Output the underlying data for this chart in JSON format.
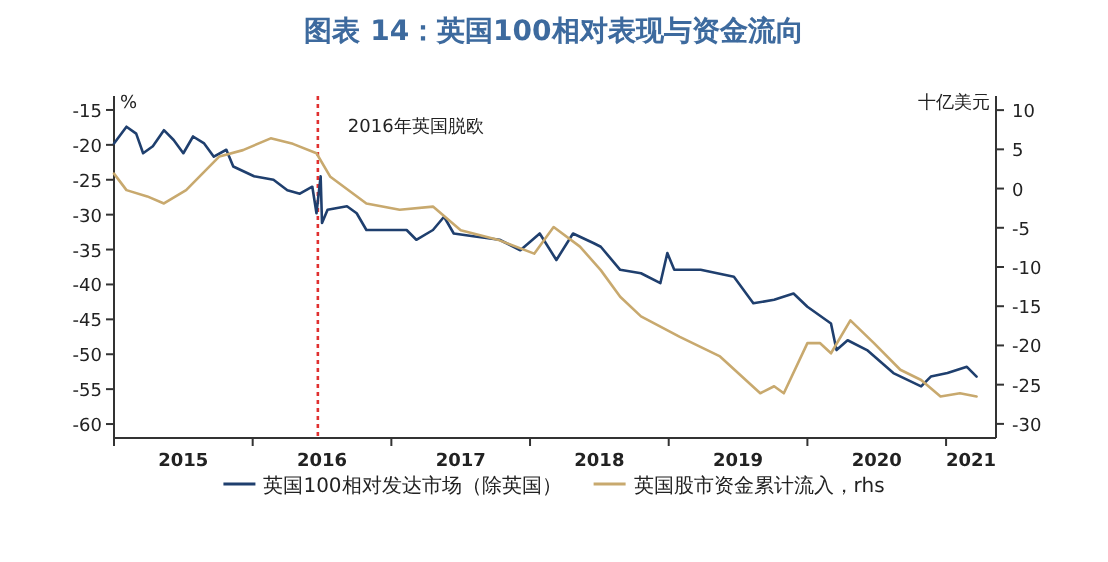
{
  "chart_data": {
    "type": "line",
    "title": "图表 14：英国100相对表现与资金流向",
    "ylabel": "%",
    "y2label": "十亿美元",
    "xlim": [
      2015.0,
      2021.36
    ],
    "ylim": [
      -62,
      -13
    ],
    "y2lim": [
      -31.8,
      11.8
    ],
    "xticks": [
      {
        "value": 2015,
        "label": null
      },
      {
        "value": 2015.5,
        "label": "2015"
      },
      {
        "value": 2016,
        "label": null
      },
      {
        "value": 2016.5,
        "label": "2016"
      },
      {
        "value": 2017,
        "label": null
      },
      {
        "value": 2017.5,
        "label": "2017"
      },
      {
        "value": 2018,
        "label": null
      },
      {
        "value": 2018.5,
        "label": "2018"
      },
      {
        "value": 2019,
        "label": null
      },
      {
        "value": 2019.5,
        "label": "2019"
      },
      {
        "value": 2020,
        "label": null
      },
      {
        "value": 2020.5,
        "label": "2020"
      },
      {
        "value": 2021,
        "label": null
      },
      {
        "value": 2021.18,
        "label": "2021"
      }
    ],
    "yticks": [
      -15,
      -20,
      -25,
      -30,
      -35,
      -40,
      -45,
      -50,
      -55,
      -60
    ],
    "y2ticks": [
      10,
      5,
      0,
      -5,
      -10,
      -15,
      -20,
      -25,
      -30
    ],
    "ref_lines": [
      {
        "axis": "x",
        "value": 2016.47,
        "label": "2016年英国脱欧",
        "color": "#e03030",
        "line_style": "dotted"
      }
    ],
    "legend": "bottom",
    "series": [
      {
        "name": "英国100相对发达市场（除英国）",
        "color": "#1f3f6e",
        "x": [
          2015.0,
          2015.09,
          2015.16,
          2015.21,
          2015.28,
          2015.36,
          2015.43,
          2015.5,
          2015.57,
          2015.65,
          2015.72,
          2015.81,
          2015.86,
          2016.01,
          2016.15,
          2016.25,
          2016.34,
          2016.43,
          2016.46,
          2016.49,
          2016.5,
          2016.54,
          2016.68,
          2016.75,
          2016.82,
          2016.97,
          2017.11,
          2017.18,
          2017.3,
          2017.38,
          2017.45,
          2017.59,
          2017.78,
          2017.93,
          2018.07,
          2018.19,
          2018.31,
          2018.46,
          2018.51,
          2018.65,
          2018.8,
          2018.94,
          2018.99,
          2019.04,
          2019.23,
          2019.47,
          2019.61,
          2019.76,
          2019.9,
          2020.0,
          2020.17,
          2020.21,
          2020.29,
          2020.43,
          2020.62,
          2020.82,
          2020.89,
          2021.01,
          2021.15,
          2021.22
        ],
        "values": [
          -19.8,
          -17.4,
          -18.4,
          -21.2,
          -20.2,
          -17.9,
          -19.3,
          -21.2,
          -18.8,
          -19.8,
          -21.7,
          -20.7,
          -23.1,
          -24.5,
          -25.0,
          -26.5,
          -27.0,
          -26.0,
          -29.8,
          -24.5,
          -31.2,
          -29.3,
          -28.8,
          -29.8,
          -32.2,
          -32.2,
          -32.2,
          -33.6,
          -32.2,
          -30.3,
          -32.7,
          -33.1,
          -33.6,
          -35.1,
          -32.7,
          -36.5,
          -32.7,
          -34.1,
          -34.6,
          -37.9,
          -38.4,
          -39.8,
          -35.5,
          -37.9,
          -37.9,
          -38.9,
          -42.7,
          -42.2,
          -41.3,
          -43.2,
          -45.6,
          -49.4,
          -48.0,
          -49.4,
          -52.7,
          -54.6,
          -53.2,
          -52.7,
          -51.8,
          -53.2
        ]
      },
      {
        "name": "英国股市资金累计流入，rhs",
        "color": "#c8a96e",
        "axis": "y2",
        "x": [
          2015.0,
          2015.09,
          2015.24,
          2015.36,
          2015.52,
          2015.76,
          2015.93,
          2016.13,
          2016.29,
          2016.46,
          2016.56,
          2016.82,
          2017.06,
          2017.3,
          2017.5,
          2017.78,
          2018.03,
          2018.17,
          2018.36,
          2018.51,
          2018.65,
          2018.8,
          2019.08,
          2019.37,
          2019.66,
          2019.76,
          2019.83,
          2020.0,
          2020.09,
          2020.17,
          2020.31,
          2020.48,
          2020.67,
          2020.82,
          2020.96,
          2021.1,
          2021.22
        ],
        "values": [
          1.9,
          -0.2,
          -1.0,
          -1.9,
          -0.2,
          4.1,
          4.9,
          6.4,
          5.7,
          4.5,
          1.5,
          -1.9,
          -2.7,
          -2.3,
          -5.3,
          -6.6,
          -8.3,
          -4.9,
          -7.4,
          -10.4,
          -13.8,
          -16.3,
          -18.9,
          -21.4,
          -26.1,
          -25.2,
          -26.1,
          -19.7,
          -19.7,
          -21.0,
          -16.8,
          -19.7,
          -23.1,
          -24.4,
          -26.5,
          -26.1,
          -26.5
        ]
      }
    ]
  }
}
